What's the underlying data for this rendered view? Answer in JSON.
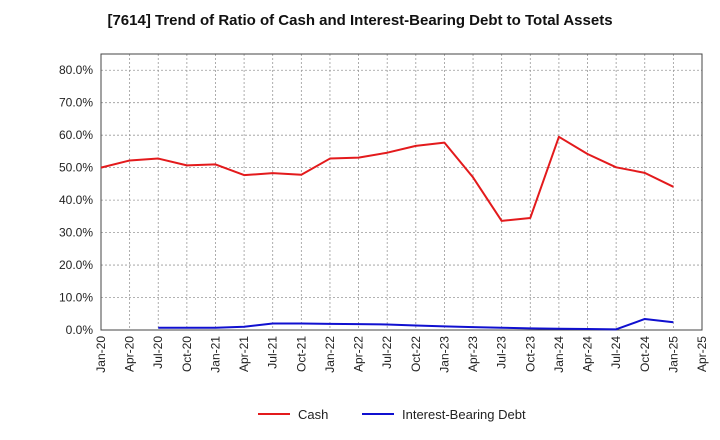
{
  "chart_data": {
    "type": "line",
    "title": "[7614]  Trend of Ratio of Cash and Interest-Bearing Debt to Total Assets",
    "xlabel": "",
    "ylabel": "",
    "categories": [
      "Jan-20",
      "Apr-20",
      "Jul-20",
      "Oct-20",
      "Jan-21",
      "Apr-21",
      "Jul-21",
      "Oct-21",
      "Jan-22",
      "Apr-22",
      "Jul-22",
      "Oct-22",
      "Jan-23",
      "Apr-23",
      "Jul-23",
      "Oct-23",
      "Jan-24",
      "Apr-24",
      "Jul-24",
      "Oct-24",
      "Jan-25",
      "Apr-25"
    ],
    "ylim": [
      0,
      85
    ],
    "yticks": [
      0,
      10,
      20,
      30,
      40,
      50,
      60,
      70,
      80
    ],
    "ytick_labels": [
      "0.0%",
      "10.0%",
      "20.0%",
      "30.0%",
      "40.0%",
      "50.0%",
      "60.0%",
      "70.0%",
      "80.0%"
    ],
    "grid": true,
    "legend_position": "bottom",
    "series": [
      {
        "name": "Cash",
        "color": "#e31a1c",
        "values": [
          50.0,
          52.2,
          52.8,
          50.7,
          51.0,
          47.7,
          48.3,
          47.8,
          52.8,
          53.1,
          54.6,
          56.7,
          57.7,
          47.0,
          33.6,
          34.5,
          59.5,
          54.2,
          50.1,
          48.4,
          44.1,
          null
        ]
      },
      {
        "name": "Interest-Bearing Debt",
        "color": "#1010d0",
        "values": [
          null,
          null,
          0.7,
          0.7,
          0.7,
          1.0,
          2.0,
          2.0,
          1.9,
          1.8,
          1.7,
          1.4,
          1.1,
          0.9,
          0.7,
          0.5,
          0.4,
          0.3,
          0.2,
          3.4,
          2.4,
          null
        ]
      }
    ]
  }
}
